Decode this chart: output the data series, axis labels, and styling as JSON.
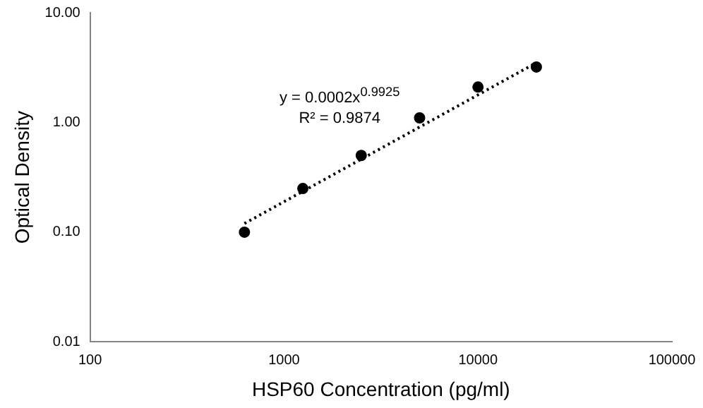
{
  "chart_data": {
    "type": "scatter",
    "xlabel": "HSP60 Concentration (pg/ml)",
    "ylabel": "Optical Density",
    "log": "xy",
    "grid": false,
    "legend": false,
    "marker": "circle",
    "xlim": [
      100,
      100000
    ],
    "xticks": [
      100,
      1000,
      10000,
      100000
    ],
    "ylim": [
      0.01,
      10
    ],
    "yticks": [
      {
        "value": 0.01,
        "label": "0.01"
      },
      {
        "value": 0.1,
        "label": "0.10"
      },
      {
        "value": 1,
        "label": "1.00"
      },
      {
        "value": 10,
        "label": "10.00"
      }
    ],
    "annotations": [
      "y = 0.0002x$^{0.9925}$",
      "R² = 0.9874"
    ],
    "series": [
      {
        "color": "#000000",
        "x": [
          625,
          1250,
          2500,
          5000,
          10000,
          20000
        ],
        "values": [
          0.1,
          0.25,
          0.5,
          1.1,
          2.1,
          3.2
        ]
      },
      {
        "type": "line",
        "color": "#000000",
        "line_style": "dotted",
        "marker": "none",
        "x": [
          625,
          20000
        ],
        "values": [
          0.12,
          3.5
        ]
      }
    ]
  }
}
